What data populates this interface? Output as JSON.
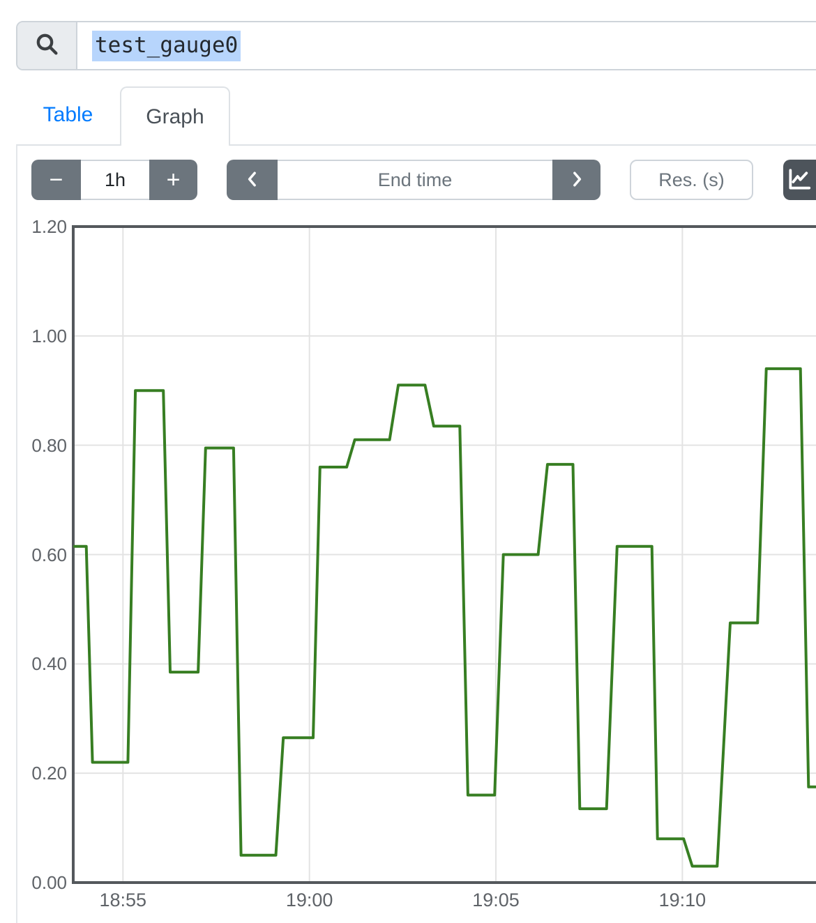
{
  "search": {
    "value": "test_gauge0"
  },
  "tabs": [
    {
      "label": "Table",
      "active": false
    },
    {
      "label": "Graph",
      "active": true
    }
  ],
  "toolbar": {
    "minus_label": "−",
    "range_value": "1h",
    "plus_label": "+",
    "end_time_placeholder": "End time",
    "res_placeholder": "Res. (s)"
  },
  "colors": {
    "accent_blue": "#007bff",
    "button_gray": "#6c757d",
    "dark_button": "#4d545b",
    "series_green": "#377e22",
    "selection_blue": "#b7d5fc",
    "grid_line": "#e3e3e3",
    "plot_border": "#54585c"
  },
  "chart_data": {
    "type": "line",
    "title": "test_gauge0",
    "xlabel": "",
    "ylabel": "",
    "grid": true,
    "legend_position": "none",
    "xlim": [
      "18:53:40",
      "19:13:35"
    ],
    "ylim": [
      0,
      1.2
    ],
    "x_ticks": [
      {
        "label": "18:55",
        "t": "18:55:00"
      },
      {
        "label": "19:00",
        "t": "19:00:00"
      },
      {
        "label": "19:05",
        "t": "19:05:00"
      },
      {
        "label": "19:10",
        "t": "19:10:00"
      }
    ],
    "y_ticks": [
      {
        "label": "0.00",
        "v": 0.0
      },
      {
        "label": "0.20",
        "v": 0.2
      },
      {
        "label": "0.40",
        "v": 0.4
      },
      {
        "label": "0.60",
        "v": 0.6
      },
      {
        "label": "0.80",
        "v": 0.8
      },
      {
        "label": "1.00",
        "v": 1.0
      },
      {
        "label": "1.20",
        "v": 1.2
      }
    ],
    "series": [
      {
        "name": "test_gauge0",
        "color": "#377e22",
        "points": [
          [
            "18:53:42",
            0.615
          ],
          [
            "18:54:01",
            0.615
          ],
          [
            "18:54:11",
            0.22
          ],
          [
            "18:55:08",
            0.22
          ],
          [
            "18:55:20",
            0.9
          ],
          [
            "18:56:05",
            0.9
          ],
          [
            "18:56:16",
            0.385
          ],
          [
            "18:57:01",
            0.385
          ],
          [
            "18:57:13",
            0.795
          ],
          [
            "18:57:58",
            0.795
          ],
          [
            "18:58:10",
            0.05
          ],
          [
            "18:59:06",
            0.05
          ],
          [
            "18:59:18",
            0.265
          ],
          [
            "19:00:06",
            0.265
          ],
          [
            "19:00:17",
            0.76
          ],
          [
            "19:01:00",
            0.76
          ],
          [
            "19:01:13",
            0.81
          ],
          [
            "19:02:09",
            0.81
          ],
          [
            "19:02:23",
            0.91
          ],
          [
            "19:03:06",
            0.91
          ],
          [
            "19:03:20",
            0.835
          ],
          [
            "19:04:02",
            0.835
          ],
          [
            "19:04:15",
            0.16
          ],
          [
            "19:04:58",
            0.16
          ],
          [
            "19:05:12",
            0.6
          ],
          [
            "19:06:08",
            0.6
          ],
          [
            "19:06:23",
            0.765
          ],
          [
            "19:07:04",
            0.765
          ],
          [
            "19:07:15",
            0.135
          ],
          [
            "19:07:58",
            0.135
          ],
          [
            "19:08:15",
            0.615
          ],
          [
            "19:09:11",
            0.615
          ],
          [
            "19:09:20",
            0.08
          ],
          [
            "19:10:02",
            0.08
          ],
          [
            "19:10:16",
            0.03
          ],
          [
            "19:10:56",
            0.03
          ],
          [
            "19:11:17",
            0.475
          ],
          [
            "19:12:01",
            0.475
          ],
          [
            "19:12:15",
            0.94
          ],
          [
            "19:13:10",
            0.94
          ],
          [
            "19:13:23",
            0.175
          ],
          [
            "19:13:34",
            0.175
          ]
        ]
      }
    ]
  }
}
